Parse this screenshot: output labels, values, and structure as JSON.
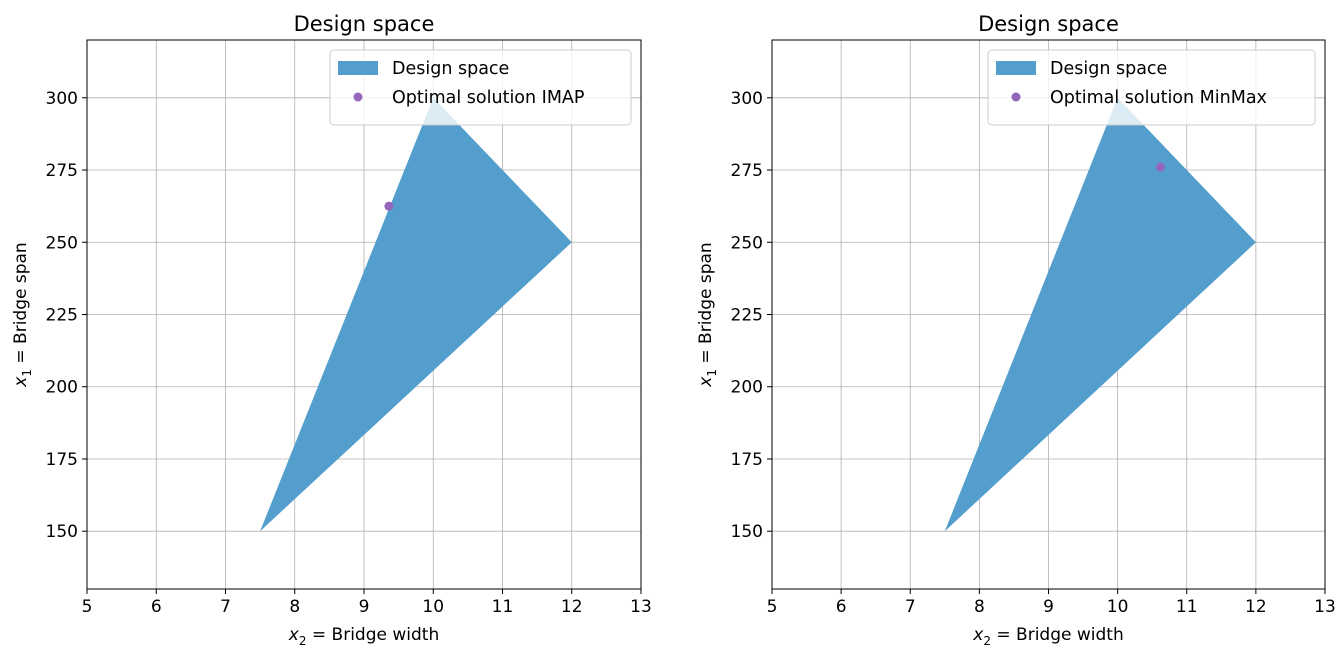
{
  "chart_data": [
    {
      "type": "area",
      "title": "Design space",
      "xlabel_var": "x",
      "xlabel_sub": "2",
      "xlabel_text": " = Bridge width",
      "ylabel_var": "x",
      "ylabel_sub": "1",
      "ylabel_text": " = Bridge span",
      "xlim": [
        5,
        13
      ],
      "ylim": [
        130,
        320
      ],
      "xticks": [
        5,
        6,
        7,
        8,
        9,
        10,
        11,
        12,
        13
      ],
      "yticks": [
        150,
        175,
        200,
        225,
        250,
        275,
        300
      ],
      "grid": true,
      "legend_position": "top-right",
      "series": [
        {
          "name": "Design space",
          "kind": "polygon",
          "color": "#539ecd",
          "points": [
            [
              7.5,
              150
            ],
            [
              10,
              300
            ],
            [
              12,
              250
            ]
          ]
        },
        {
          "name": "Optimal solution IMAP",
          "kind": "scatter",
          "color": "#9467bd",
          "points": [
            [
              9.36,
              262.5
            ]
          ]
        }
      ]
    },
    {
      "type": "area",
      "title": "Design space",
      "xlabel_var": "x",
      "xlabel_sub": "2",
      "xlabel_text": " = Bridge width",
      "ylabel_var": "x",
      "ylabel_sub": "1",
      "ylabel_text": " = Bridge span",
      "xlim": [
        5,
        13
      ],
      "ylim": [
        130,
        320
      ],
      "xticks": [
        5,
        6,
        7,
        8,
        9,
        10,
        11,
        12,
        13
      ],
      "yticks": [
        150,
        175,
        200,
        225,
        250,
        275,
        300
      ],
      "grid": true,
      "legend_position": "top-right",
      "series": [
        {
          "name": "Design space",
          "kind": "polygon",
          "color": "#539ecd",
          "points": [
            [
              7.5,
              150
            ],
            [
              10,
              300
            ],
            [
              12,
              250
            ]
          ]
        },
        {
          "name": "Optimal solution MinMax",
          "kind": "scatter",
          "color": "#9467bd",
          "points": [
            [
              10.62,
              276
            ]
          ]
        }
      ]
    }
  ]
}
